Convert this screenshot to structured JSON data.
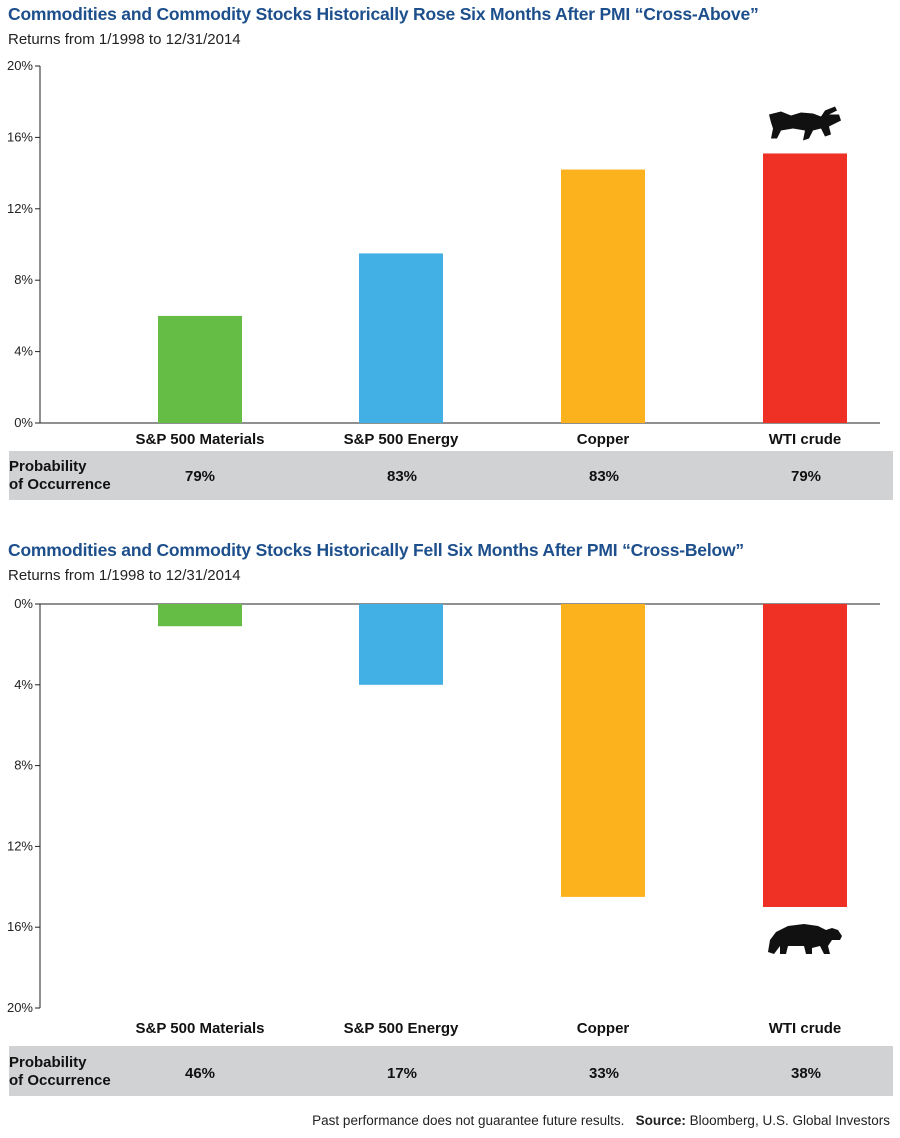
{
  "colors": {
    "title": "#1d4f8c",
    "band": "#d1d2d4"
  },
  "chart_data": [
    {
      "type": "bar",
      "title": "Commodities and Commodity Stocks Historically Rose Six Months After PMI “Cross-Above”",
      "subtitle": "Returns from 1/1998 to 12/31/2014",
      "categories": [
        "S&P 500 Materials",
        "S&P 500 Energy",
        "Copper",
        "WTI crude"
      ],
      "values": [
        6.0,
        9.5,
        14.2,
        15.1
      ],
      "colors": [
        "#66bd45",
        "#42b0e5",
        "#fcb21c",
        "#ee3124"
      ],
      "ylim": [
        0,
        20
      ],
      "yticks": [
        "0%",
        "4%",
        "8%",
        "12%",
        "16%",
        "20%"
      ],
      "grid": false,
      "icon": "bull-icon",
      "probability": {
        "label_line1": "Probability",
        "label_line2": "of Occurrence",
        "values": [
          "79%",
          "83%",
          "83%",
          "79%"
        ]
      }
    },
    {
      "type": "bar",
      "title": "Commodities and Commodity Stocks Historically Fell Six Months After PMI “Cross-Below”",
      "subtitle": "Returns from 1/1998 to 12/31/2014",
      "categories": [
        "S&P 500 Materials",
        "S&P 500 Energy",
        "Copper",
        "WTI crude"
      ],
      "values": [
        1.1,
        4.0,
        14.5,
        15.0
      ],
      "colors": [
        "#66bd45",
        "#42b0e5",
        "#fcb21c",
        "#ee3124"
      ],
      "ylim": [
        0,
        20
      ],
      "yaxis_inverted": true,
      "yticks": [
        "0%",
        "4%",
        "8%",
        "12%",
        "16%",
        "20%"
      ],
      "grid": false,
      "icon": "bear-icon",
      "probability": {
        "label_line1": "Probability",
        "label_line2": "of Occurrence",
        "values": [
          "46%",
          "17%",
          "33%",
          "38%"
        ]
      }
    }
  ],
  "footer": {
    "disclaimer": "Past performance does not guarantee future results.",
    "source_label": "Source:",
    "source_text": "Bloomberg, U.S. Global Investors"
  }
}
